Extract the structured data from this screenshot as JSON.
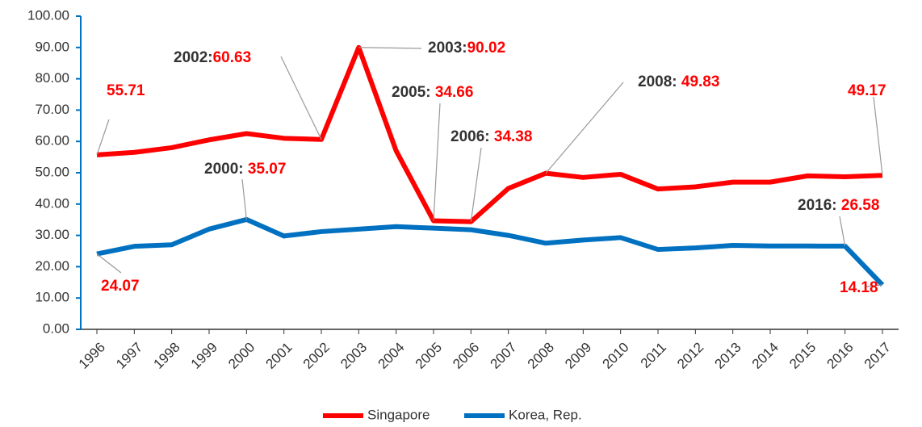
{
  "chart_data": {
    "type": "line",
    "categories": [
      "1996",
      "1997",
      "1998",
      "1999",
      "2000",
      "2001",
      "2002",
      "2003",
      "2004",
      "2005",
      "2006",
      "2007",
      "2008",
      "2009",
      "2010",
      "2011",
      "2012",
      "2013",
      "2014",
      "2015",
      "2016",
      "2017"
    ],
    "series": [
      {
        "name": "Singapore",
        "color": "#ff0000",
        "values": [
          55.71,
          56.5,
          58,
          60.5,
          62.5,
          61,
          60.63,
          90.02,
          57,
          34.66,
          34.38,
          45,
          49.83,
          48.5,
          49.5,
          44.8,
          45.5,
          47,
          47,
          49,
          48.7,
          49.17
        ]
      },
      {
        "name": "Korea, Rep.",
        "color": "#0070c0",
        "values": [
          24.07,
          26.5,
          27,
          32,
          35.07,
          29.8,
          31.2,
          32,
          32.8,
          32.3,
          31.8,
          30,
          27.5,
          28.5,
          29.3,
          25.5,
          26,
          26.8,
          26.6,
          26.6,
          26.58,
          14.18
        ]
      }
    ],
    "ylim": [
      0,
      100
    ],
    "yticks": [
      {
        "value": 0,
        "label": "0.00"
      },
      {
        "value": 10,
        "label": "10.00"
      },
      {
        "value": 20,
        "label": "20.00"
      },
      {
        "value": 30,
        "label": "30.00"
      },
      {
        "value": 40,
        "label": "40.00"
      },
      {
        "value": 50,
        "label": "50.00"
      },
      {
        "value": 60,
        "label": "60.00"
      },
      {
        "value": 70,
        "label": "70.00"
      },
      {
        "value": 80,
        "label": "80.00"
      },
      {
        "value": 90,
        "label": "90.00"
      },
      {
        "value": 100,
        "label": "100.00"
      }
    ],
    "annotations": [
      "2002:",
      "2003:",
      "2005: ",
      "2006: ",
      "2008: ",
      "2000: ",
      "2016: "
    ],
    "legend": "bottom"
  }
}
